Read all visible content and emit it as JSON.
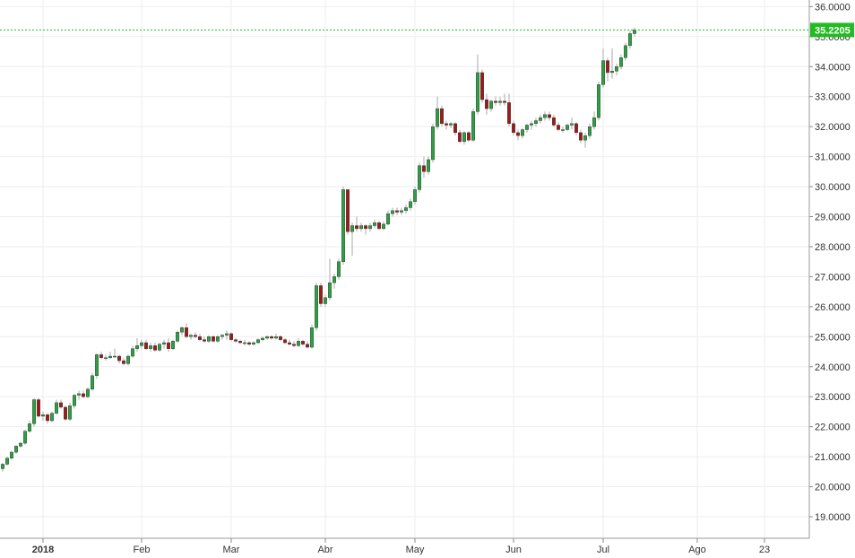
{
  "chart_data": {
    "type": "candlestick",
    "y_axis": {
      "ticks": [
        "19.0000",
        "20.0000",
        "21.0000",
        "22.0000",
        "23.0000",
        "24.0000",
        "25.0000",
        "26.0000",
        "27.0000",
        "28.0000",
        "29.0000",
        "30.0000",
        "31.0000",
        "32.0000",
        "33.0000",
        "34.0000",
        "35.0000",
        "36.0000"
      ],
      "range": [
        18.1,
        36.2
      ]
    },
    "x_axis": {
      "labels": [
        {
          "text": "2018",
          "bold": true,
          "index": 9
        },
        {
          "text": "Feb",
          "bold": false,
          "index": 31
        },
        {
          "text": "Mar",
          "bold": false,
          "index": 51
        },
        {
          "text": "Abr",
          "bold": false,
          "index": 72
        },
        {
          "text": "May",
          "bold": false,
          "index": 92
        },
        {
          "text": "Jun",
          "bold": false,
          "index": 114
        },
        {
          "text": "Jul",
          "bold": false,
          "index": 134
        },
        {
          "text": "Ago",
          "bold": false,
          "index": 155
        },
        {
          "text": "23",
          "bold": false,
          "index": 170
        }
      ]
    },
    "last_price": {
      "value": 35.2205,
      "label": "35.2205"
    },
    "colors": {
      "up": "#2ea043",
      "down": "#9c1c1c",
      "last_line": "#22bb22",
      "grid": "#eeeeee"
    },
    "candles": [
      [
        20.6,
        20.8,
        20.5,
        20.75
      ],
      [
        20.75,
        21.0,
        20.7,
        20.95
      ],
      [
        20.95,
        21.2,
        20.9,
        21.15
      ],
      [
        21.15,
        21.4,
        21.1,
        21.35
      ],
      [
        21.35,
        21.5,
        21.3,
        21.45
      ],
      [
        21.45,
        21.9,
        21.4,
        21.85
      ],
      [
        21.85,
        22.2,
        21.8,
        22.1
      ],
      [
        22.1,
        22.95,
        22.0,
        22.9
      ],
      [
        22.9,
        22.95,
        22.3,
        22.35
      ],
      [
        22.35,
        22.5,
        22.2,
        22.4
      ],
      [
        22.4,
        22.45,
        22.1,
        22.2
      ],
      [
        22.2,
        22.5,
        22.15,
        22.45
      ],
      [
        22.45,
        22.9,
        22.4,
        22.8
      ],
      [
        22.8,
        22.9,
        22.6,
        22.65
      ],
      [
        22.65,
        22.7,
        22.2,
        22.25
      ],
      [
        22.25,
        22.8,
        22.2,
        22.7
      ],
      [
        22.7,
        23.1,
        22.6,
        23.05
      ],
      [
        23.05,
        23.2,
        22.9,
        23.1
      ],
      [
        23.1,
        23.2,
        22.95,
        23.0
      ],
      [
        23.0,
        23.3,
        22.95,
        23.25
      ],
      [
        23.25,
        23.8,
        23.2,
        23.7
      ],
      [
        23.7,
        24.45,
        23.6,
        24.4
      ],
      [
        24.4,
        24.5,
        24.25,
        24.3
      ],
      [
        24.3,
        24.4,
        24.2,
        24.3
      ],
      [
        24.3,
        24.5,
        24.25,
        24.35
      ],
      [
        24.35,
        24.6,
        24.3,
        24.35
      ],
      [
        24.35,
        24.4,
        24.1,
        24.2
      ],
      [
        24.2,
        24.3,
        24.05,
        24.1
      ],
      [
        24.1,
        24.4,
        24.05,
        24.35
      ],
      [
        24.35,
        24.7,
        24.3,
        24.6
      ],
      [
        24.6,
        24.95,
        24.5,
        24.7
      ],
      [
        24.7,
        24.9,
        24.6,
        24.8
      ],
      [
        24.8,
        24.9,
        24.55,
        24.6
      ],
      [
        24.6,
        24.8,
        24.5,
        24.7
      ],
      [
        24.7,
        24.8,
        24.5,
        24.55
      ],
      [
        24.55,
        24.8,
        24.5,
        24.75
      ],
      [
        24.75,
        24.9,
        24.6,
        24.8
      ],
      [
        24.8,
        24.95,
        24.5,
        24.6
      ],
      [
        24.6,
        24.9,
        24.55,
        24.85
      ],
      [
        24.85,
        25.2,
        24.8,
        25.15
      ],
      [
        25.15,
        25.35,
        25.05,
        25.3
      ],
      [
        25.3,
        25.45,
        24.95,
        25.0
      ],
      [
        25.0,
        25.1,
        24.9,
        25.05
      ],
      [
        25.05,
        25.15,
        24.95,
        25.0
      ],
      [
        25.0,
        25.1,
        24.85,
        24.9
      ],
      [
        24.9,
        25.0,
        24.8,
        24.85
      ],
      [
        24.85,
        25.05,
        24.8,
        25.0
      ],
      [
        25.0,
        25.05,
        24.8,
        24.85
      ],
      [
        24.85,
        25.05,
        24.8,
        25.0
      ],
      [
        25.0,
        25.1,
        24.9,
        25.05
      ],
      [
        25.05,
        25.2,
        24.9,
        25.1
      ],
      [
        25.1,
        25.15,
        24.85,
        24.9
      ],
      [
        24.9,
        24.95,
        24.8,
        24.85
      ],
      [
        24.85,
        24.9,
        24.75,
        24.8
      ],
      [
        24.8,
        24.9,
        24.7,
        24.8
      ],
      [
        24.8,
        24.85,
        24.7,
        24.75
      ],
      [
        24.75,
        24.85,
        24.7,
        24.8
      ],
      [
        24.8,
        24.95,
        24.75,
        24.9
      ],
      [
        24.9,
        25.0,
        24.85,
        24.95
      ],
      [
        24.95,
        25.05,
        24.9,
        25.0
      ],
      [
        25.0,
        25.05,
        24.9,
        24.95
      ],
      [
        24.95,
        25.1,
        24.9,
        25.0
      ],
      [
        25.0,
        25.05,
        24.85,
        24.9
      ],
      [
        24.9,
        24.95,
        24.75,
        24.8
      ],
      [
        24.8,
        24.9,
        24.7,
        24.75
      ],
      [
        24.75,
        24.85,
        24.65,
        24.7
      ],
      [
        24.7,
        24.95,
        24.65,
        24.85
      ],
      [
        24.85,
        24.9,
        24.7,
        24.75
      ],
      [
        24.75,
        24.85,
        24.6,
        24.65
      ],
      [
        24.65,
        25.4,
        24.6,
        25.3
      ],
      [
        25.3,
        26.8,
        25.2,
        26.7
      ],
      [
        26.7,
        26.8,
        26.0,
        26.1
      ],
      [
        26.1,
        26.4,
        26.0,
        26.3
      ],
      [
        26.3,
        27.6,
        26.2,
        26.8
      ],
      [
        26.8,
        27.1,
        26.6,
        27.0
      ],
      [
        27.0,
        27.6,
        26.9,
        27.5
      ],
      [
        27.5,
        30.0,
        27.4,
        29.9
      ],
      [
        29.9,
        29.9,
        28.4,
        28.5
      ],
      [
        28.5,
        28.8,
        27.7,
        28.7
      ],
      [
        28.7,
        29.0,
        28.5,
        28.6
      ],
      [
        28.6,
        28.8,
        28.5,
        28.7
      ],
      [
        28.7,
        28.75,
        28.4,
        28.6
      ],
      [
        28.6,
        28.8,
        28.5,
        28.7
      ],
      [
        28.7,
        28.9,
        28.6,
        28.8
      ],
      [
        28.8,
        28.85,
        28.55,
        28.6
      ],
      [
        28.6,
        28.85,
        28.55,
        28.75
      ],
      [
        28.75,
        29.2,
        28.7,
        29.1
      ],
      [
        29.1,
        29.3,
        29.0,
        29.2
      ],
      [
        29.2,
        29.3,
        29.05,
        29.15
      ],
      [
        29.15,
        29.3,
        29.05,
        29.2
      ],
      [
        29.2,
        29.4,
        29.1,
        29.3
      ],
      [
        29.3,
        29.6,
        29.2,
        29.5
      ],
      [
        29.5,
        30.0,
        29.4,
        29.9
      ],
      [
        29.9,
        30.8,
        29.8,
        30.7
      ],
      [
        30.7,
        31.0,
        30.3,
        30.5
      ],
      [
        30.5,
        31.0,
        30.4,
        30.9
      ],
      [
        30.9,
        32.1,
        30.8,
        32.0
      ],
      [
        32.0,
        33.0,
        31.9,
        32.6
      ],
      [
        32.6,
        32.7,
        32.0,
        32.1
      ],
      [
        32.1,
        32.2,
        31.9,
        32.05
      ],
      [
        32.05,
        32.15,
        31.95,
        32.1
      ],
      [
        32.1,
        32.15,
        31.7,
        31.8
      ],
      [
        31.8,
        31.9,
        31.45,
        31.5
      ],
      [
        31.5,
        31.85,
        31.4,
        31.8
      ],
      [
        31.8,
        31.85,
        31.5,
        31.55
      ],
      [
        31.55,
        32.6,
        31.5,
        32.5
      ],
      [
        32.5,
        34.4,
        32.4,
        33.8
      ],
      [
        33.8,
        33.9,
        32.8,
        32.9
      ],
      [
        32.9,
        33.1,
        32.4,
        32.6
      ],
      [
        32.6,
        32.9,
        32.5,
        32.85
      ],
      [
        32.85,
        33.0,
        32.7,
        32.8
      ],
      [
        32.8,
        33.0,
        32.7,
        32.85
      ],
      [
        32.85,
        33.1,
        32.7,
        32.8
      ],
      [
        32.8,
        33.1,
        32.0,
        32.1
      ],
      [
        32.1,
        32.2,
        31.7,
        31.8
      ],
      [
        31.8,
        31.9,
        31.55,
        31.7
      ],
      [
        31.7,
        31.95,
        31.6,
        31.9
      ],
      [
        31.9,
        32.1,
        31.8,
        32.05
      ],
      [
        32.05,
        32.2,
        31.9,
        32.1
      ],
      [
        32.1,
        32.3,
        32.0,
        32.2
      ],
      [
        32.2,
        32.4,
        32.1,
        32.3
      ],
      [
        32.3,
        32.5,
        32.2,
        32.4
      ],
      [
        32.4,
        32.5,
        32.2,
        32.3
      ],
      [
        32.3,
        32.4,
        32.0,
        32.05
      ],
      [
        32.05,
        32.15,
        31.85,
        31.9
      ],
      [
        31.9,
        32.0,
        31.8,
        31.9
      ],
      [
        31.9,
        32.1,
        31.85,
        32.05
      ],
      [
        32.05,
        32.3,
        31.9,
        32.1
      ],
      [
        32.1,
        32.15,
        31.7,
        31.8
      ],
      [
        31.8,
        31.9,
        31.45,
        31.55
      ],
      [
        31.55,
        31.8,
        31.3,
        31.7
      ],
      [
        31.7,
        32.1,
        31.6,
        32.0
      ],
      [
        32.0,
        32.5,
        31.9,
        32.3
      ],
      [
        32.3,
        33.5,
        32.2,
        33.4
      ],
      [
        33.4,
        34.6,
        33.3,
        34.2
      ],
      [
        34.2,
        34.3,
        33.5,
        33.8
      ],
      [
        33.8,
        34.6,
        33.6,
        33.85
      ],
      [
        33.85,
        34.1,
        33.7,
        34.0
      ],
      [
        34.0,
        34.4,
        33.9,
        34.3
      ],
      [
        34.3,
        34.8,
        34.2,
        34.7
      ],
      [
        34.7,
        35.2,
        34.6,
        35.1
      ],
      [
        35.1,
        35.3,
        35.0,
        35.2205
      ]
    ]
  }
}
